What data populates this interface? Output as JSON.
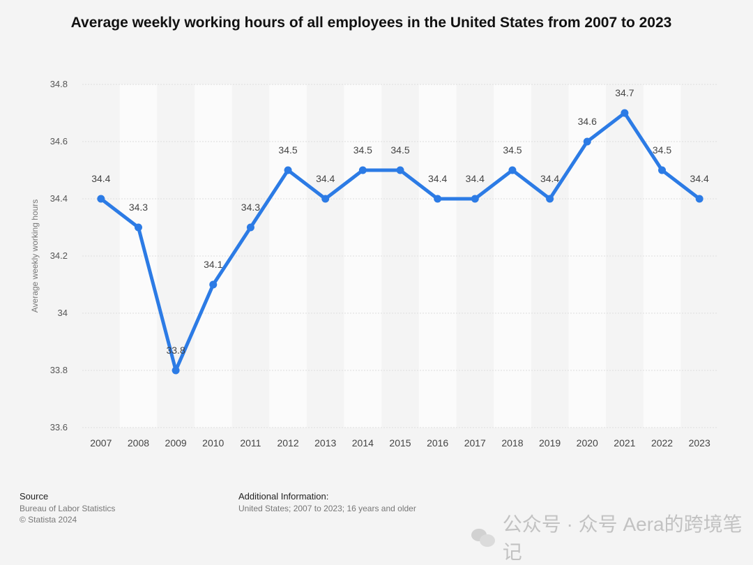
{
  "title": "Average weekly working hours of all employees in the United States from 2007 to 2023",
  "source": {
    "heading": "Source",
    "lines": [
      "Bureau of Labor Statistics",
      "© Statista 2024"
    ]
  },
  "additional_info": {
    "heading": "Additional Information:",
    "text": "United States; 2007 to 2023; 16 years and older"
  },
  "watermark": {
    "text": "公众号 · 众号 Aera的跨境笔记",
    "icon": "wechat-icon"
  },
  "chart_data": {
    "type": "line",
    "title": "Average weekly working hours of all employees in the United States from 2007 to 2023",
    "xlabel": "",
    "ylabel": "Average weekly working hours",
    "categories": [
      "2007",
      "2008",
      "2009",
      "2010",
      "2011",
      "2012",
      "2013",
      "2014",
      "2015",
      "2016",
      "2017",
      "2018",
      "2019",
      "2020",
      "2021",
      "2022",
      "2023"
    ],
    "series": [
      {
        "values": [
          34.4,
          34.3,
          33.8,
          34.1,
          34.3,
          34.5,
          34.4,
          34.5,
          34.5,
          34.4,
          34.4,
          34.5,
          34.4,
          34.6,
          34.7,
          34.5,
          34.4
        ]
      }
    ],
    "data_labels": [
      "34.4",
      "34.3",
      "33.8",
      "34.1",
      "34.3",
      "34.5",
      "34.4",
      "34.5",
      "34.5",
      "34.4",
      "34.4",
      "34.5",
      "34.4",
      "34.6",
      "34.7",
      "34.5",
      "34.4"
    ],
    "yticks": [
      "33.6",
      "33.8",
      "34",
      "34.2",
      "34.4",
      "34.6",
      "34.8"
    ],
    "ylim": [
      33.6,
      34.8
    ],
    "grid": true,
    "legend": "none",
    "colors": {
      "line": "#2c7be5",
      "band": "#fbfbfb",
      "background": "#f4f4f4",
      "grid": "#dedede"
    }
  }
}
